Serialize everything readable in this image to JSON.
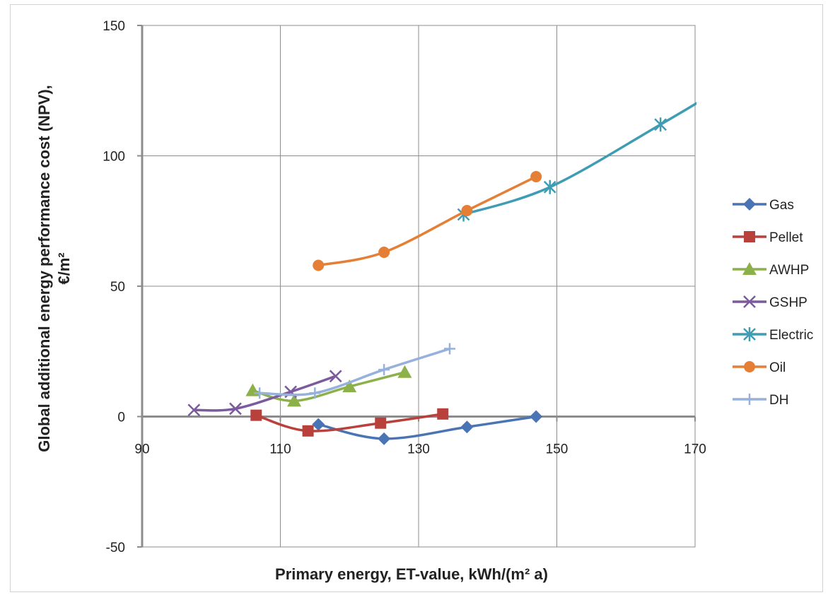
{
  "chart_data": {
    "type": "line",
    "title": "",
    "xlabel": "Primary energy, ET-value, kWh/(m² a)",
    "ylabel_line1": "Global additional energy performance cost (NPV),",
    "ylabel_line2": "€/m²",
    "xlim": [
      90,
      170
    ],
    "ylim": [
      -50,
      150
    ],
    "xticks": [
      "90",
      "110",
      "130",
      "150",
      "170"
    ],
    "yticks": [
      "150",
      "100",
      "50",
      "0",
      "-50"
    ],
    "xtick_values": [
      90,
      110,
      130,
      150,
      170
    ],
    "ytick_values": [
      150,
      100,
      50,
      0,
      -50
    ],
    "grid": true,
    "legend_position": "right",
    "series": [
      {
        "name": "Gas",
        "color": "#4a74b4",
        "marker": "diamond",
        "x": [
          115.5,
          125,
          137,
          147
        ],
        "y": [
          -3,
          -8.5,
          -4,
          0
        ]
      },
      {
        "name": "Pellet",
        "color": "#b8413c",
        "marker": "square",
        "x": [
          106.5,
          114,
          124.5,
          133.5
        ],
        "y": [
          0.5,
          -5.5,
          -2.5,
          1
        ]
      },
      {
        "name": "AWHP",
        "color": "#8db14a",
        "marker": "triangle",
        "x": [
          106,
          112,
          120,
          128
        ],
        "y": [
          10,
          6,
          11.5,
          17
        ]
      },
      {
        "name": "GSHP",
        "color": "#7b5a9e",
        "marker": "x",
        "x": [
          97.5,
          103.5,
          111.5,
          118
        ],
        "y": [
          2.5,
          3,
          9.5,
          15.5
        ]
      },
      {
        "name": "Electric",
        "color": "#3e9cb3",
        "marker": "star",
        "x": [
          136.5,
          149,
          165,
          172
        ],
        "y": [
          77.5,
          88,
          112,
          123
        ]
      },
      {
        "name": "Oil",
        "color": "#e57f35",
        "marker": "circle",
        "x": [
          115.5,
          125,
          137,
          147
        ],
        "y": [
          58,
          63,
          79,
          92
        ]
      },
      {
        "name": "DH",
        "color": "#95b1dc",
        "marker": "plus",
        "x": [
          107,
          115,
          125,
          134.5
        ],
        "y": [
          9,
          9,
          18,
          26
        ]
      }
    ]
  }
}
